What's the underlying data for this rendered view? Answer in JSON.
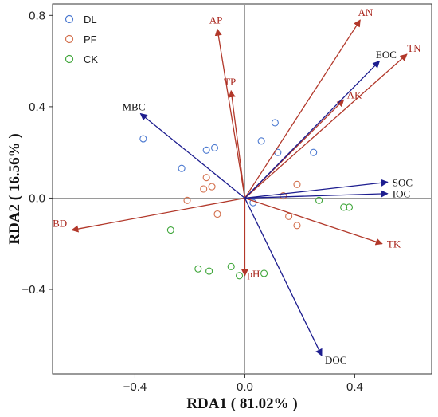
{
  "chart_data": {
    "type": "scatter",
    "subtype": "rda-biplot",
    "title": "",
    "xlabel": "RDA1 ( 81.02% )",
    "ylabel": "RDA2 ( 16.56% )",
    "xlim": [
      -0.7,
      0.68
    ],
    "ylim": [
      -0.77,
      0.85
    ],
    "x_ticks": [
      -0.4,
      0.0,
      0.4
    ],
    "y_ticks": [
      0.8,
      0.4,
      0.0,
      -0.4
    ],
    "x_tick_labels": [
      "−0.4",
      "0.0",
      "0.4"
    ],
    "y_tick_labels": [
      "0.8",
      "0.4",
      "0.0",
      "−0.4"
    ],
    "zero_lines": true,
    "grid": false,
    "legend_position": "top-left",
    "series": [
      {
        "name": "DL",
        "color": "#4a78d0",
        "points": [
          [
            -0.37,
            0.26
          ],
          [
            -0.23,
            0.13
          ],
          [
            -0.14,
            0.21
          ],
          [
            -0.11,
            0.22
          ],
          [
            0.06,
            0.25
          ],
          [
            0.11,
            0.33
          ],
          [
            0.12,
            0.2
          ],
          [
            0.25,
            0.2
          ],
          [
            0.03,
            -0.02
          ]
        ]
      },
      {
        "name": "PF",
        "color": "#d36f4c",
        "points": [
          [
            -0.21,
            -0.01
          ],
          [
            -0.15,
            0.04
          ],
          [
            -0.14,
            0.09
          ],
          [
            -0.12,
            0.05
          ],
          [
            -0.1,
            -0.07
          ],
          [
            0.14,
            0.01
          ],
          [
            0.16,
            -0.08
          ],
          [
            0.19,
            0.06
          ],
          [
            0.19,
            -0.12
          ]
        ]
      },
      {
        "name": "CK",
        "color": "#3fa63a",
        "points": [
          [
            -0.27,
            -0.14
          ],
          [
            -0.17,
            -0.31
          ],
          [
            -0.13,
            -0.32
          ],
          [
            -0.05,
            -0.3
          ],
          [
            -0.02,
            -0.34
          ],
          [
            0.07,
            -0.33
          ],
          [
            0.27,
            -0.01
          ],
          [
            0.36,
            -0.04
          ],
          [
            0.38,
            -0.04
          ]
        ]
      }
    ],
    "vectors": [
      {
        "name": "AN",
        "group": "red",
        "x": 0.42,
        "y": 0.78
      },
      {
        "name": "TN",
        "group": "red",
        "x": 0.59,
        "y": 0.63
      },
      {
        "name": "AP",
        "group": "red",
        "x": -0.1,
        "y": 0.74
      },
      {
        "name": "TP",
        "group": "red",
        "x": -0.05,
        "y": 0.47
      },
      {
        "name": "AK",
        "group": "red",
        "x": 0.36,
        "y": 0.43
      },
      {
        "name": "BD",
        "group": "red",
        "x": -0.63,
        "y": -0.14
      },
      {
        "name": "TK",
        "group": "red",
        "x": 0.5,
        "y": -0.2
      },
      {
        "name": "pH",
        "group": "red",
        "x": 0.0,
        "y": -0.34
      },
      {
        "name": "EOC",
        "group": "blue",
        "x": 0.49,
        "y": 0.6
      },
      {
        "name": "MBC",
        "group": "blue",
        "x": -0.38,
        "y": 0.37
      },
      {
        "name": "SOC",
        "group": "blue",
        "x": 0.52,
        "y": 0.07
      },
      {
        "name": "IOC",
        "group": "blue",
        "x": 0.52,
        "y": 0.02
      },
      {
        "name": "DOC",
        "group": "blue",
        "x": 0.28,
        "y": -0.69
      }
    ],
    "colors": {
      "red_vector": "#b2382a",
      "blue_vector": "#1d1d8f",
      "red_label": "#a8231a",
      "blue_label": "#111111"
    }
  }
}
